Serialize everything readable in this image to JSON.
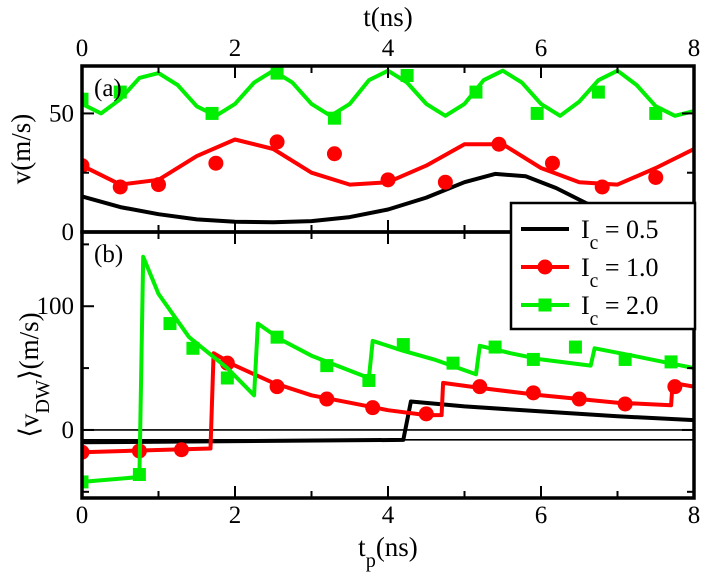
{
  "chart_data": [
    {
      "panel": "(a)",
      "type": "line",
      "top_axis_label": "t(ns)",
      "ylabel": "v(m/s)",
      "xlim": [
        0,
        8
      ],
      "ylim": [
        0,
        70
      ],
      "xticks": [
        "0",
        "2",
        "4",
        "6",
        "8"
      ],
      "yticks": [
        "0",
        "50"
      ],
      "series": [
        {
          "name": "I_c = 0.5",
          "color": "#000000",
          "marker": "none",
          "x": [
            0,
            0.5,
            1,
            1.5,
            2,
            2.5,
            3,
            3.5,
            4,
            4.5,
            5,
            5.4,
            5.8,
            6.2,
            6.6,
            7.0,
            7.4,
            7.8,
            8
          ],
          "y": [
            15,
            10.5,
            7.5,
            5.3,
            4.3,
            4.1,
            4.6,
            6.3,
            9.5,
            14.5,
            21,
            24.5,
            23.5,
            18.5,
            12,
            7,
            3.8,
            1.8,
            1.5
          ]
        },
        {
          "name": "I_c = 1.0",
          "color": "#ff0000",
          "marker": "circle",
          "x": [
            0,
            0.5,
            1,
            1.5,
            2,
            2.5,
            3,
            3.5,
            4,
            4.5,
            5,
            5.5,
            6,
            6.5,
            7,
            7.5,
            8
          ],
          "y": [
            28,
            20,
            22,
            32,
            39,
            35,
            25,
            20,
            21,
            28,
            37,
            37,
            27,
            21,
            20,
            27,
            35
          ],
          "markers_x": [
            0,
            0.5,
            1.0,
            1.75,
            2.55,
            3.3,
            4.0,
            4.75,
            5.45,
            6.15,
            6.8,
            7.5
          ],
          "markers_y": [
            28,
            19,
            20,
            29,
            38,
            33,
            22,
            21,
            37,
            29,
            19,
            23
          ]
        },
        {
          "name": "I_c = 2.0",
          "color": "#00ee00",
          "marker": "square",
          "x": [
            0,
            0.25,
            0.5,
            0.75,
            1.0,
            1.25,
            1.5,
            1.75,
            2.0,
            2.25,
            2.5,
            2.75,
            3.0,
            3.25,
            3.5,
            3.75,
            4.0,
            4.25,
            4.5,
            4.75,
            5.0,
            5.25,
            5.5,
            5.75,
            6.0,
            6.25,
            6.5,
            6.75,
            7.0,
            7.25,
            7.5,
            7.75,
            8.0
          ],
          "y": [
            54,
            50,
            56,
            65,
            67,
            62,
            53,
            49,
            54,
            63,
            68,
            63,
            54,
            49,
            54,
            64,
            68,
            63,
            54,
            49,
            54,
            64,
            68,
            63,
            54,
            49,
            55,
            64,
            68,
            62,
            53,
            49,
            51
          ],
          "markers_x": [
            0,
            0.5,
            1.7,
            2.55,
            3.3,
            4.25,
            5.15,
            5.95,
            6.75,
            7.5
          ],
          "markers_y": [
            56,
            59,
            50,
            67,
            48,
            66,
            59,
            50,
            59,
            50
          ]
        }
      ]
    },
    {
      "panel": "(b)",
      "type": "line",
      "xlabel": "t_p(ns)",
      "ylabel": "⟨v_DW⟩(m/s)",
      "xlim": [
        0,
        8
      ],
      "ylim": [
        -55,
        160
      ],
      "xticks": [
        "0",
        "2",
        "4",
        "6",
        "8"
      ],
      "yticks": [
        "0",
        "100"
      ],
      "reference_lines": [
        0,
        -8
      ],
      "legend_position": "upper-right",
      "series": [
        {
          "name": "I_c = 0.5",
          "color": "#000000",
          "marker": "none",
          "x": [
            0,
            4.2,
            4.3,
            5.0,
            6.0,
            7.0,
            8.0
          ],
          "y": [
            -10,
            -8,
            23,
            19,
            15,
            11,
            8
          ]
        },
        {
          "name": "I_c = 1.0",
          "color": "#ff0000",
          "marker": "circle",
          "x": [
            0,
            1.68,
            1.72,
            2.0,
            2.5,
            3.0,
            3.5,
            4.0,
            4.5,
            4.7,
            4.72,
            5.2,
            6.0,
            7.0,
            7.7,
            7.72,
            8.0
          ],
          "y": [
            -18,
            -15,
            62,
            52,
            38,
            28,
            22,
            16,
            12,
            12,
            38,
            34,
            28,
            22,
            20,
            38,
            35
          ],
          "markers_x": [
            0,
            0.75,
            1.3,
            1.9,
            2.55,
            3.2,
            3.8,
            4.5,
            5.2,
            5.9,
            6.5,
            7.1,
            7.75
          ],
          "markers_y": [
            -18,
            -17,
            -16,
            54,
            35,
            25,
            18,
            13,
            35,
            30,
            25,
            21,
            35
          ]
        },
        {
          "name": "I_c = 2.0",
          "color": "#00ee00",
          "marker": "square",
          "x": [
            0,
            0.75,
            0.8,
            1.0,
            1.4,
            1.9,
            2.25,
            2.3,
            2.6,
            3.0,
            3.5,
            3.75,
            3.8,
            4.2,
            4.6,
            5.15,
            5.2,
            5.6,
            6.0,
            6.65,
            6.7,
            7.2,
            7.6,
            8.0
          ],
          "y": [
            -42,
            -38,
            140,
            110,
            75,
            50,
            28,
            86,
            73,
            60,
            48,
            42,
            72,
            64,
            57,
            45,
            68,
            62,
            57,
            52,
            66,
            60,
            55,
            50
          ],
          "markers_x": [
            0,
            0.75,
            1.15,
            1.45,
            1.9,
            2.55,
            3.2,
            3.75,
            4.2,
            4.85,
            5.4,
            5.9,
            6.45,
            7.1,
            7.7
          ],
          "markers_y": [
            -42,
            -36,
            86,
            66,
            42,
            75,
            52,
            40,
            69,
            54,
            67,
            57,
            67,
            57,
            55
          ]
        }
      ]
    }
  ],
  "legend": {
    "entries": [
      "I_c = 0.5",
      "I_c = 1.0",
      "I_c = 2.0"
    ]
  }
}
